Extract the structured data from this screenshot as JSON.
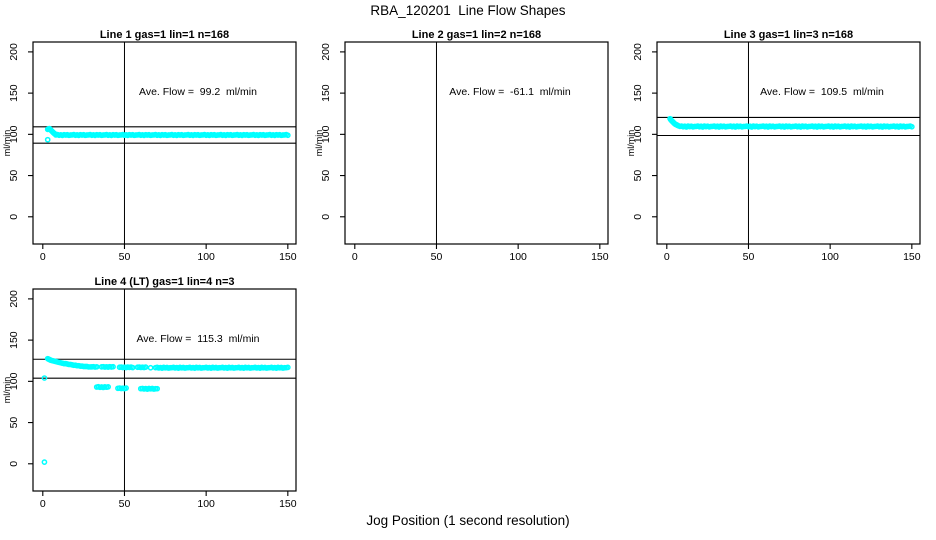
{
  "page": {
    "title": "RBA_120201  Line Flow Shapes",
    "xlabel": "Jog Position (1 second resolution)",
    "background_color": "#ffffff",
    "axis_color": "#000000",
    "point_color": "#00ffff"
  },
  "chart_data": [
    {
      "type": "scatter",
      "title": "Line 1 gas=1 lin=1 n=168",
      "annotation": "Ave. Flow =  99.2  ml/min",
      "ave_flow_ml_min": 99.2,
      "n": 168,
      "ylabel": "ml/min",
      "x_ticks": [
        0,
        50,
        100,
        150
      ],
      "y_ticks": [
        0,
        50,
        100,
        150,
        200
      ],
      "xlim": [
        -6,
        155
      ],
      "ylim": [
        -33,
        212
      ],
      "grid": false,
      "vline_x": 50,
      "hlines": [
        109.1,
        89.3
      ],
      "points": [
        [
          3,
          93.5
        ],
        [
          3,
          106
        ],
        [
          3.5,
          106.5
        ],
        [
          4,
          107
        ],
        [
          4.5,
          106
        ],
        [
          5,
          105
        ],
        [
          5.5,
          104
        ],
        [
          6,
          103
        ],
        [
          6.5,
          102
        ],
        [
          7,
          101
        ],
        [
          7.5,
          100.5
        ]
      ],
      "runs": [
        {
          "x0": 8,
          "x1": 150,
          "step": 1,
          "y": 99.2,
          "dy": 0.9
        }
      ]
    },
    {
      "type": "scatter",
      "title": "Line 2 gas=1 lin=2 n=168",
      "annotation": "Ave. Flow =  -61.1  ml/min",
      "ave_flow_ml_min": -61.1,
      "n": 168,
      "ylabel": "ml/min",
      "x_ticks": [
        0,
        50,
        100,
        150
      ],
      "y_ticks": [
        0,
        50,
        100,
        150,
        200
      ],
      "xlim": [
        -6,
        155
      ],
      "ylim": [
        -33,
        212
      ],
      "grid": false,
      "vline_x": 50,
      "hlines": [],
      "points": [],
      "runs": []
    },
    {
      "type": "scatter",
      "title": "Line 3 gas=1 lin=3 n=168",
      "annotation": "Ave. Flow =  109.5  ml/min",
      "ave_flow_ml_min": 109.5,
      "n": 168,
      "ylabel": "ml/min",
      "x_ticks": [
        0,
        50,
        100,
        150
      ],
      "y_ticks": [
        0,
        50,
        100,
        150,
        200
      ],
      "xlim": [
        -6,
        155
      ],
      "ylim": [
        -33,
        212
      ],
      "grid": false,
      "vline_x": 50,
      "hlines": [
        120.5,
        98.6
      ],
      "points": [
        [
          2,
          119
        ],
        [
          2.5,
          117.5
        ],
        [
          3,
          116.5
        ],
        [
          3.5,
          115.5
        ],
        [
          4,
          114.5
        ],
        [
          4.5,
          113.5
        ],
        [
          5,
          112.5
        ],
        [
          5.5,
          112
        ],
        [
          6,
          111.5
        ],
        [
          6.5,
          111
        ],
        [
          7,
          110.5
        ]
      ],
      "runs": [
        {
          "x0": 8,
          "x1": 150,
          "step": 1,
          "y": 109.5,
          "dy": 1.1
        }
      ]
    },
    {
      "type": "scatter",
      "title": "Line 4 (LT) gas=1 lin=4 n=3",
      "annotation": "Ave. Flow =  115.3  ml/min",
      "ave_flow_ml_min": 115.3,
      "n": 3,
      "ylabel": "ml/min",
      "x_ticks": [
        0,
        50,
        100,
        150
      ],
      "y_ticks": [
        0,
        50,
        100,
        150,
        200
      ],
      "xlim": [
        -6,
        155
      ],
      "ylim": [
        -33,
        212
      ],
      "grid": false,
      "vline_x": 50,
      "hlines": [
        126.8,
        103.8
      ],
      "points": [
        [
          1,
          2
        ],
        [
          1,
          104
        ],
        [
          3,
          127.5
        ],
        [
          3.5,
          127
        ],
        [
          4,
          126.5
        ],
        [
          4.5,
          126
        ],
        [
          5,
          125.5
        ],
        [
          6,
          125
        ],
        [
          7,
          124.5
        ],
        [
          8,
          124
        ],
        [
          9,
          123.5
        ],
        [
          10,
          123
        ],
        [
          11,
          122.5
        ],
        [
          12,
          122
        ],
        [
          13,
          121.5
        ],
        [
          14,
          121.5
        ],
        [
          15,
          121
        ],
        [
          16,
          120.5
        ],
        [
          17,
          120.5
        ],
        [
          18,
          120
        ],
        [
          19,
          119.5
        ],
        [
          20,
          119.5
        ],
        [
          21,
          119
        ],
        [
          22,
          119
        ],
        [
          23,
          118.5
        ],
        [
          24,
          118.5
        ],
        [
          25,
          118
        ],
        [
          26,
          118
        ],
        [
          27,
          118
        ],
        [
          28,
          117.5
        ],
        [
          29,
          117.5
        ],
        [
          66,
          116.5
        ]
      ],
      "runs": [
        {
          "x0": 30,
          "x1": 33,
          "step": 1,
          "y": 117.5,
          "dy": 0.5
        },
        {
          "x0": 36,
          "x1": 43,
          "step": 1,
          "y": 117.5,
          "dy": 0.6
        },
        {
          "x0": 47,
          "x1": 55,
          "step": 1,
          "y": 117,
          "dy": 0.6
        },
        {
          "x0": 58,
          "x1": 63,
          "step": 1,
          "y": 117,
          "dy": 0.5
        },
        {
          "x0": 69,
          "x1": 150,
          "step": 1,
          "y": 116.5,
          "dy": 0.9
        },
        {
          "x0": 33,
          "x1": 40,
          "step": 1,
          "y": 93,
          "dy": 0.8
        },
        {
          "x0": 46,
          "x1": 51,
          "step": 1,
          "y": 91.5,
          "dy": 0.6
        },
        {
          "x0": 60,
          "x1": 70,
          "step": 1,
          "y": 91,
          "dy": 0.8
        }
      ]
    }
  ]
}
